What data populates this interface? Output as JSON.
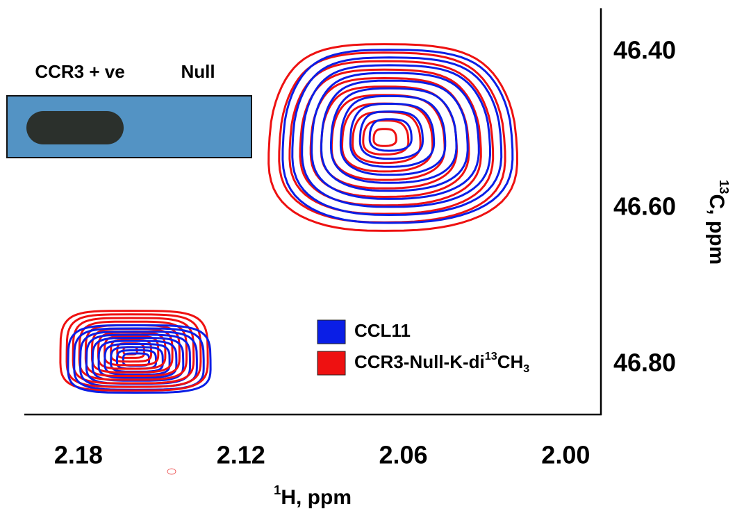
{
  "chart_data": {
    "type": "contour",
    "x_label": [
      {
        "text": "1",
        "style": "sup"
      },
      {
        "text": "H, ppm",
        "style": "normal"
      }
    ],
    "y_label": [
      {
        "text": "13",
        "style": "sup"
      },
      {
        "text": "C, ppm",
        "style": "normal"
      }
    ],
    "xlim": [
      2.2,
      1.987
    ],
    "ylim": [
      46.344,
      46.864
    ],
    "xticks": [
      2.18,
      2.12,
      2.06,
      {
        "value": 2.0,
        "label": "2.00"
      }
    ],
    "yticks": [
      {
        "value": 46.4,
        "label": "46.40"
      },
      {
        "value": 46.6,
        "label": "46.60"
      },
      {
        "value": 46.8,
        "label": "46.80"
      }
    ],
    "series": [
      {
        "name": [
          {
            "text": "CCL11",
            "style": "normal"
          }
        ],
        "color": "#0a1ee6"
      },
      {
        "name": [
          {
            "text": "CCR3-Null-K-di",
            "style": "normal"
          },
          {
            "text": "13",
            "style": "sup"
          },
          {
            "text": "CH",
            "style": "normal"
          },
          {
            "text": "3",
            "style": "sub"
          }
        ],
        "color": "#ee1111"
      }
    ],
    "inset": {
      "labels": [
        "CCR3 + ve",
        "Null"
      ]
    }
  }
}
